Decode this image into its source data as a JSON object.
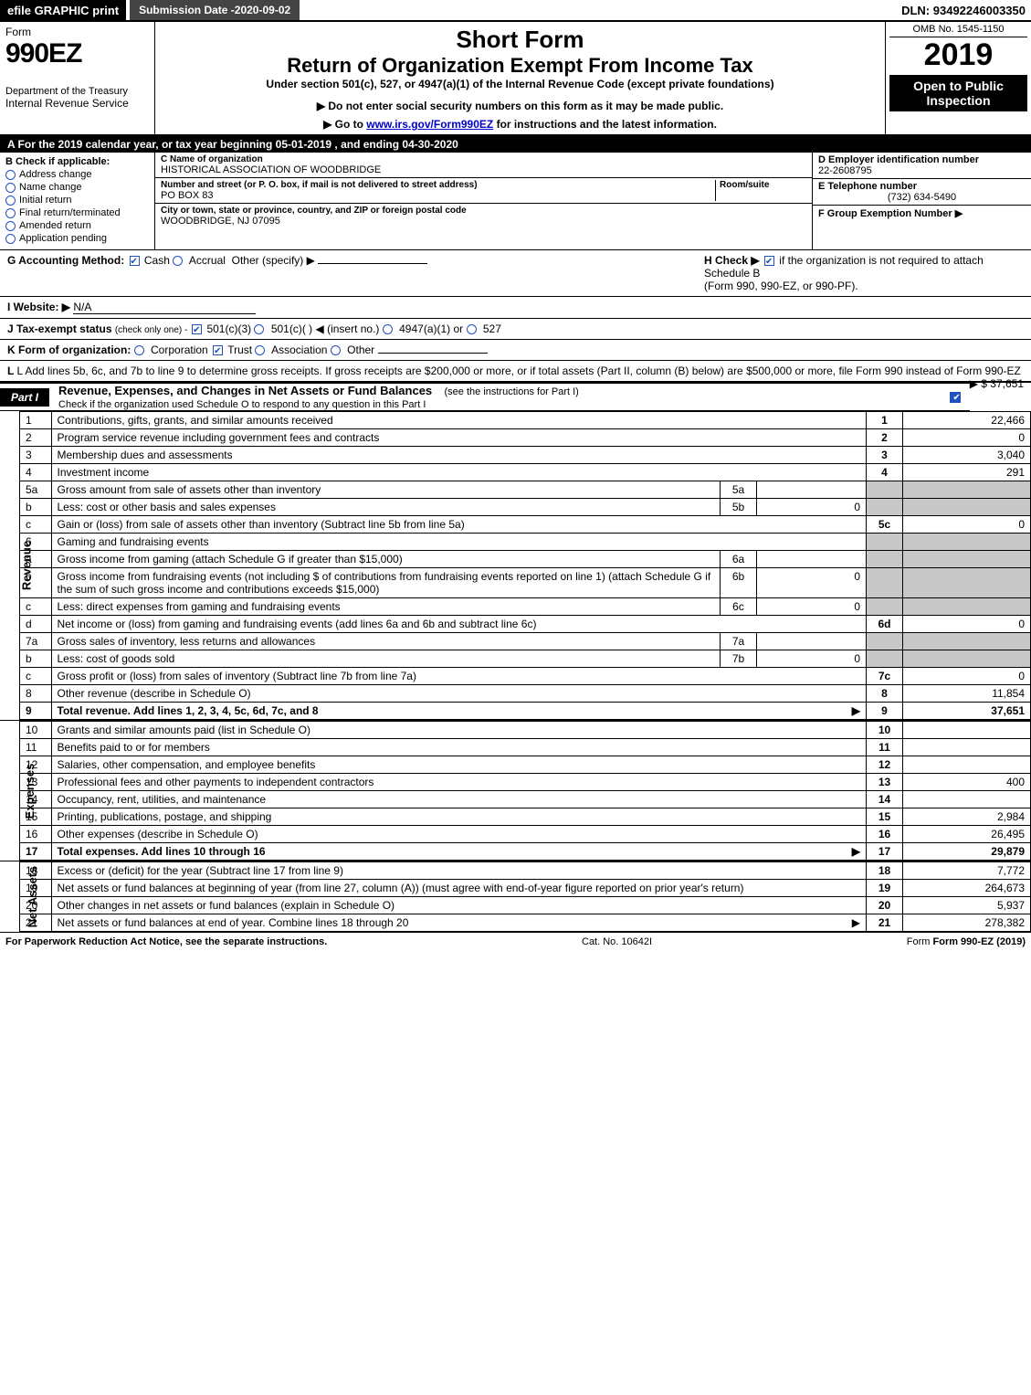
{
  "topbar": {
    "efile": "efile GRAPHIC",
    "print": "print",
    "subdate_label": "Submission Date - ",
    "subdate": "2020-09-02",
    "dln_label": "DLN: ",
    "dln": "93492246003350"
  },
  "header": {
    "form_label": "Form",
    "form_num": "990EZ",
    "dept": "Department of the Treasury",
    "irs": "Internal Revenue Service",
    "shortform": "Short Form",
    "return_title": "Return of Organization Exempt From Income Tax",
    "under": "Under section 501(c), 527, or 4947(a)(1) of the Internal Revenue Code (except private foundations)",
    "donot": "▶ Do not enter social security numbers on this form as it may be made public.",
    "goto_prefix": "▶ Go to ",
    "goto_link": "www.irs.gov/Form990EZ",
    "goto_suffix": " for instructions and the latest information.",
    "omb": "OMB No. 1545-1150",
    "year": "2019",
    "open": "Open to Public Inspection"
  },
  "taxyear": {
    "prefix": "A  For the 2019 calendar year, or tax year beginning ",
    "begin": "05-01-2019",
    "mid": " , and ending ",
    "end": "04-30-2020"
  },
  "boxB": {
    "title": "B  Check if applicable:",
    "items": [
      "Address change",
      "Name change",
      "Initial return",
      "Final return/terminated",
      "Amended return",
      "Application pending"
    ]
  },
  "boxC": {
    "name_label": "C Name of organization",
    "name": "HISTORICAL ASSOCIATION OF WOODBRIDGE",
    "street_label": "Number and street (or P. O. box, if mail is not delivered to street address)",
    "street": "PO BOX 83",
    "room_label": "Room/suite",
    "city_label": "City or town, state or province, country, and ZIP or foreign postal code",
    "city": "WOODBRIDGE, NJ  07095"
  },
  "boxD": {
    "ein_label": "D Employer identification number",
    "ein": "22-2608795",
    "phone_label": "E Telephone number",
    "phone": "(732) 634-5490",
    "group_label": "F Group Exemption Number  ▶"
  },
  "lineG": {
    "label": "G Accounting Method:",
    "cash": "Cash",
    "accrual": "Accrual",
    "other": "Other (specify) ▶"
  },
  "lineH": {
    "label": "H  Check ▶",
    "text": " if the organization is not required to attach Schedule B",
    "text2": "(Form 990, 990-EZ, or 990-PF)."
  },
  "lineI": {
    "label": "I Website: ▶",
    "value": "N/A"
  },
  "lineJ": {
    "label": "J Tax-exempt status",
    "sub": "(check only one) - ",
    "opt1": "501(c)(3)",
    "opt2": "501(c)(  )",
    "insert": "◀ (insert no.)",
    "opt3": "4947(a)(1) or",
    "opt4": "527"
  },
  "lineK": {
    "label": "K Form of organization:",
    "corp": "Corporation",
    "trust": "Trust",
    "assoc": "Association",
    "other": "Other"
  },
  "lineL": {
    "text": "L Add lines 5b, 6c, and 7b to line 9 to determine gross receipts. If gross receipts are $200,000 or more, or if total assets (Part II, column (B) below) are $500,000 or more, file Form 990 instead of Form 990-EZ",
    "amount": "▶ $ 37,651"
  },
  "part1": {
    "label": "Part I",
    "title": "Revenue, Expenses, and Changes in Net Assets or Fund Balances",
    "sub": " (see the instructions for Part I)",
    "check_line": "Check if the organization used Schedule O to respond to any question in this Part I"
  },
  "revenue": {
    "vlabel": "Revenue",
    "rows": [
      {
        "n": "1",
        "desc": "Contributions, gifts, grants, and similar amounts received",
        "box": "1",
        "amt": "22,466"
      },
      {
        "n": "2",
        "desc": "Program service revenue including government fees and contracts",
        "box": "2",
        "amt": "0"
      },
      {
        "n": "3",
        "desc": "Membership dues and assessments",
        "box": "3",
        "amt": "3,040"
      },
      {
        "n": "4",
        "desc": "Investment income",
        "box": "4",
        "amt": "291"
      },
      {
        "n": "5a",
        "desc": "Gross amount from sale of assets other than inventory",
        "mbox": "5a",
        "mamt": ""
      },
      {
        "n": "b",
        "desc": "Less: cost or other basis and sales expenses",
        "mbox": "5b",
        "mamt": "0"
      },
      {
        "n": "c",
        "desc": "Gain or (loss) from sale of assets other than inventory (Subtract line 5b from line 5a)",
        "box": "5c",
        "amt": "0"
      },
      {
        "n": "6",
        "desc": "Gaming and fundraising events"
      },
      {
        "n": "a",
        "desc": "Gross income from gaming (attach Schedule G if greater than $15,000)",
        "mbox": "6a",
        "mamt": ""
      },
      {
        "n": "b",
        "desc": "Gross income from fundraising events (not including $                  of contributions from fundraising events reported on line 1) (attach Schedule G if the sum of such gross income and contributions exceeds $15,000)",
        "mbox": "6b",
        "mamt": "0"
      },
      {
        "n": "c",
        "desc": "Less: direct expenses from gaming and fundraising events",
        "mbox": "6c",
        "mamt": "0"
      },
      {
        "n": "d",
        "desc": "Net income or (loss) from gaming and fundraising events (add lines 6a and 6b and subtract line 6c)",
        "box": "6d",
        "amt": "0"
      },
      {
        "n": "7a",
        "desc": "Gross sales of inventory, less returns and allowances",
        "mbox": "7a",
        "mamt": ""
      },
      {
        "n": "b",
        "desc": "Less: cost of goods sold",
        "mbox": "7b",
        "mamt": "0"
      },
      {
        "n": "c",
        "desc": "Gross profit or (loss) from sales of inventory (Subtract line 7b from line 7a)",
        "box": "7c",
        "amt": "0"
      },
      {
        "n": "8",
        "desc": "Other revenue (describe in Schedule O)",
        "box": "8",
        "amt": "11,854"
      },
      {
        "n": "9",
        "desc": "Total revenue. Add lines 1, 2, 3, 4, 5c, 6d, 7c, and 8",
        "box": "9",
        "amt": "37,651",
        "total": true,
        "arrow": true
      }
    ]
  },
  "expenses": {
    "vlabel": "Expenses",
    "rows": [
      {
        "n": "10",
        "desc": "Grants and similar amounts paid (list in Schedule O)",
        "box": "10",
        "amt": ""
      },
      {
        "n": "11",
        "desc": "Benefits paid to or for members",
        "box": "11",
        "amt": ""
      },
      {
        "n": "12",
        "desc": "Salaries, other compensation, and employee benefits",
        "box": "12",
        "amt": ""
      },
      {
        "n": "13",
        "desc": "Professional fees and other payments to independent contractors",
        "box": "13",
        "amt": "400"
      },
      {
        "n": "14",
        "desc": "Occupancy, rent, utilities, and maintenance",
        "box": "14",
        "amt": ""
      },
      {
        "n": "15",
        "desc": "Printing, publications, postage, and shipping",
        "box": "15",
        "amt": "2,984"
      },
      {
        "n": "16",
        "desc": "Other expenses (describe in Schedule O)",
        "box": "16",
        "amt": "26,495"
      },
      {
        "n": "17",
        "desc": "Total expenses. Add lines 10 through 16",
        "box": "17",
        "amt": "29,879",
        "total": true,
        "arrow": true
      }
    ]
  },
  "netassets": {
    "vlabel": "Net Assets",
    "rows": [
      {
        "n": "18",
        "desc": "Excess or (deficit) for the year (Subtract line 17 from line 9)",
        "box": "18",
        "amt": "7,772"
      },
      {
        "n": "19",
        "desc": "Net assets or fund balances at beginning of year (from line 27, column (A)) (must agree with end-of-year figure reported on prior year's return)",
        "box": "19",
        "amt": "264,673"
      },
      {
        "n": "20",
        "desc": "Other changes in net assets or fund balances (explain in Schedule O)",
        "box": "20",
        "amt": "5,937"
      },
      {
        "n": "21",
        "desc": "Net assets or fund balances at end of year. Combine lines 18 through 20",
        "box": "21",
        "amt": "278,382",
        "arrow": true
      }
    ]
  },
  "footer": {
    "paperwork": "For Paperwork Reduction Act Notice, see the separate instructions.",
    "cat": "Cat. No. 10642I",
    "formref": "Form 990-EZ (2019)"
  },
  "colors": {
    "black": "#000000",
    "white": "#ffffff",
    "darkgray": "#444444",
    "shade": "#c8c8c8",
    "check_blue": "#2050c0",
    "link": "#0000cc"
  }
}
